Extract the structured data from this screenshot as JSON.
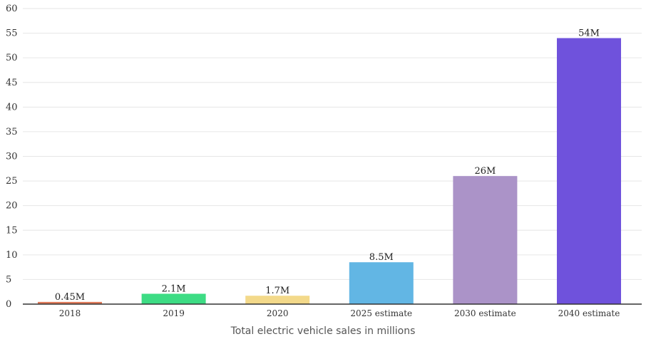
{
  "chart_data": {
    "type": "bar",
    "categories": [
      "2018",
      "2019",
      "2020",
      "2025 estimate",
      "2030 estimate",
      "2040 estimate"
    ],
    "values": [
      0.45,
      2.1,
      1.7,
      8.5,
      26,
      54
    ],
    "data_labels": [
      "0.45M",
      "2.1M",
      "1.7M",
      "8.5M",
      "26M",
      "54M"
    ],
    "colors": [
      "#e07a5a",
      "#3ddc84",
      "#f3d98a",
      "#62b6e4",
      "#ab93c8",
      "#6f52dc"
    ],
    "title": "",
    "xlabel": "Total electric vehicle sales in millions",
    "ylabel": "",
    "ylim": [
      0,
      60
    ],
    "yticks": [
      "0",
      "5",
      "10",
      "15",
      "20",
      "25",
      "30",
      "35",
      "40",
      "45",
      "50",
      "55",
      "60"
    ],
    "grid": true,
    "gridline_color": "#e6e6e6",
    "axis_color": "#333333"
  }
}
